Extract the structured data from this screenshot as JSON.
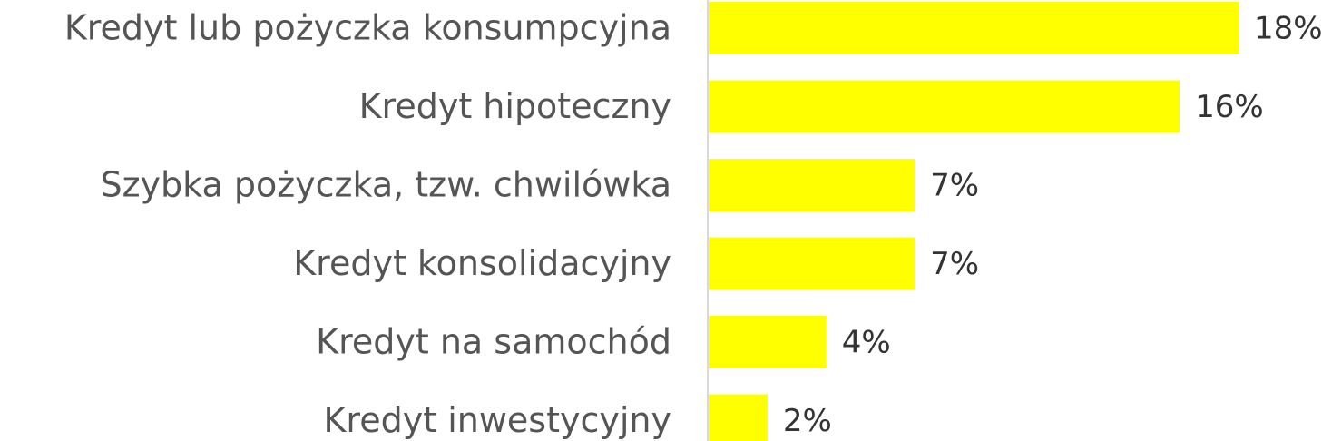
{
  "chart_data": {
    "type": "bar",
    "orientation": "horizontal",
    "categories": [
      "Kredyt lub pożyczka konsumpcyjna",
      "Kredyt hipoteczny",
      "Szybka pożyczka, tzw. chwilówka",
      "Kredyt konsolidacyjny",
      "Kredyt na samochód",
      "Kredyt inwestycyjny"
    ],
    "values": [
      18,
      16,
      7,
      7,
      4,
      2
    ],
    "value_labels": [
      "18%",
      "16%",
      "7%",
      "7%",
      "4%",
      "2%"
    ],
    "color": "#ffff00"
  }
}
